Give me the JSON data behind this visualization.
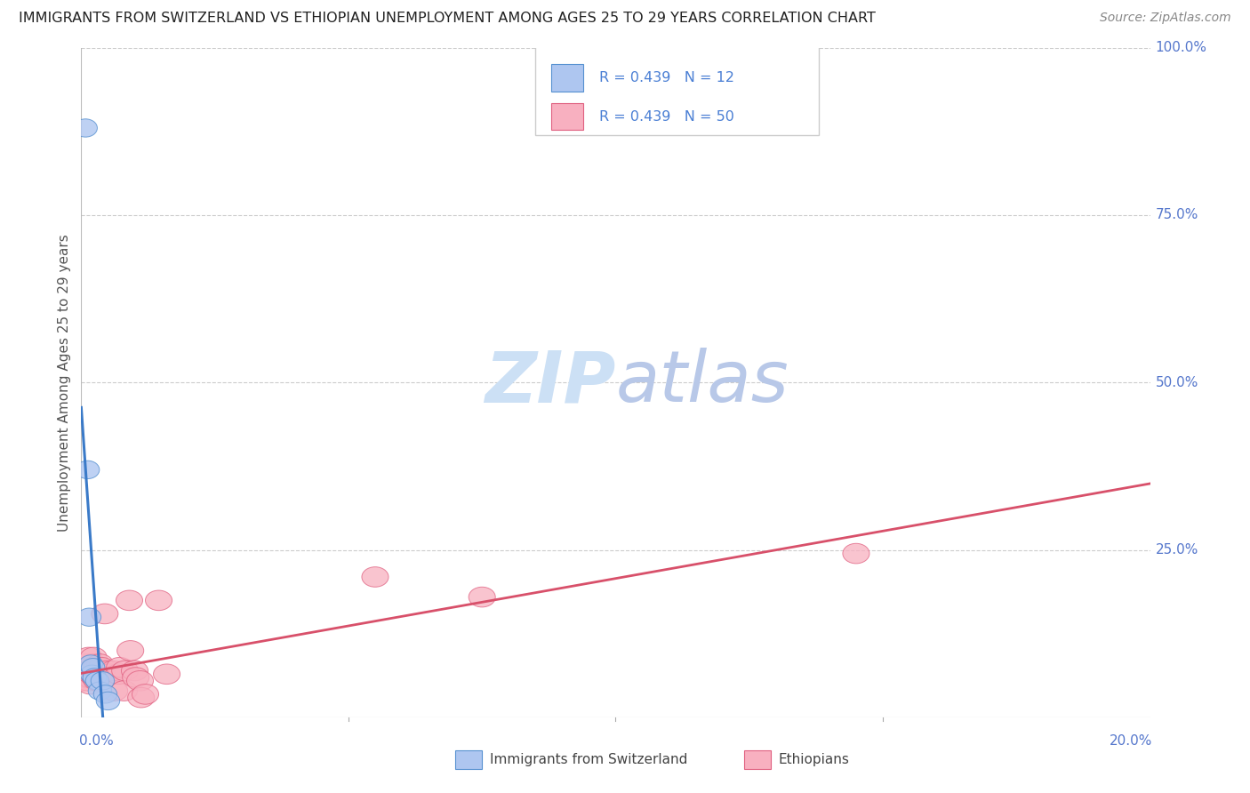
{
  "title": "IMMIGRANTS FROM SWITZERLAND VS ETHIOPIAN UNEMPLOYMENT AMONG AGES 25 TO 29 YEARS CORRELATION CHART",
  "source": "Source: ZipAtlas.com",
  "ylabel": "Unemployment Among Ages 25 to 29 years",
  "legend_blue_label": "Immigrants from Switzerland",
  "legend_pink_label": "Ethiopians",
  "R_blue": 0.439,
  "N_blue": 12,
  "R_pink": 0.439,
  "N_pink": 50,
  "blue_fill": "#aec6f0",
  "blue_edge": "#5590d0",
  "pink_fill": "#f8b0c0",
  "pink_edge": "#e06080",
  "blue_line_color": "#3a7ac8",
  "pink_line_color": "#d8506a",
  "dash_color": "#aac4e8",
  "blue_scatter": [
    [
      0.0008,
      0.88
    ],
    [
      0.0012,
      0.37
    ],
    [
      0.0015,
      0.15
    ],
    [
      0.0018,
      0.08
    ],
    [
      0.002,
      0.065
    ],
    [
      0.0022,
      0.075
    ],
    [
      0.0025,
      0.06
    ],
    [
      0.003,
      0.055
    ],
    [
      0.0035,
      0.04
    ],
    [
      0.004,
      0.055
    ],
    [
      0.0045,
      0.035
    ],
    [
      0.005,
      0.025
    ]
  ],
  "pink_scatter": [
    [
      0.0005,
      0.055
    ],
    [
      0.0007,
      0.07
    ],
    [
      0.0008,
      0.06
    ],
    [
      0.0009,
      0.08
    ],
    [
      0.001,
      0.065
    ],
    [
      0.0012,
      0.075
    ],
    [
      0.0013,
      0.055
    ],
    [
      0.0014,
      0.09
    ],
    [
      0.0015,
      0.07
    ],
    [
      0.0016,
      0.06
    ],
    [
      0.0017,
      0.05
    ],
    [
      0.0018,
      0.075
    ],
    [
      0.002,
      0.07
    ],
    [
      0.002,
      0.065
    ],
    [
      0.0022,
      0.08
    ],
    [
      0.0023,
      0.09
    ],
    [
      0.0025,
      0.07
    ],
    [
      0.0026,
      0.06
    ],
    [
      0.0028,
      0.065
    ],
    [
      0.003,
      0.055
    ],
    [
      0.003,
      0.075
    ],
    [
      0.0032,
      0.065
    ],
    [
      0.0033,
      0.055
    ],
    [
      0.0035,
      0.08
    ],
    [
      0.0035,
      0.07
    ],
    [
      0.0037,
      0.065
    ],
    [
      0.0038,
      0.075
    ],
    [
      0.004,
      0.065
    ],
    [
      0.0042,
      0.06
    ],
    [
      0.0044,
      0.155
    ],
    [
      0.005,
      0.07
    ],
    [
      0.0052,
      0.065
    ],
    [
      0.006,
      0.07
    ],
    [
      0.0062,
      0.04
    ],
    [
      0.007,
      0.065
    ],
    [
      0.0072,
      0.075
    ],
    [
      0.008,
      0.04
    ],
    [
      0.0082,
      0.07
    ],
    [
      0.009,
      0.175
    ],
    [
      0.0092,
      0.1
    ],
    [
      0.01,
      0.07
    ],
    [
      0.0102,
      0.06
    ],
    [
      0.011,
      0.055
    ],
    [
      0.0112,
      0.03
    ],
    [
      0.012,
      0.035
    ],
    [
      0.0145,
      0.175
    ],
    [
      0.016,
      0.065
    ],
    [
      0.055,
      0.21
    ],
    [
      0.075,
      0.18
    ],
    [
      0.145,
      0.245
    ]
  ],
  "watermark_zip": "ZIP",
  "watermark_atlas": "atlas",
  "watermark_color_zip": "#cce0f5",
  "watermark_color_atlas": "#b8c8e8",
  "background_color": "#ffffff",
  "xlim": [
    0.0,
    0.2
  ],
  "ylim": [
    0.0,
    1.0
  ],
  "yticks": [
    0.25,
    0.5,
    0.75,
    1.0
  ],
  "yticklabels": [
    "25.0%",
    "50.0%",
    "75.0%",
    "100.0%"
  ],
  "xtick_positions": [
    0.0,
    0.05,
    0.1,
    0.15,
    0.2
  ],
  "xticklabels": [
    "0.0%",
    "",
    "",
    "",
    "20.0%"
  ]
}
